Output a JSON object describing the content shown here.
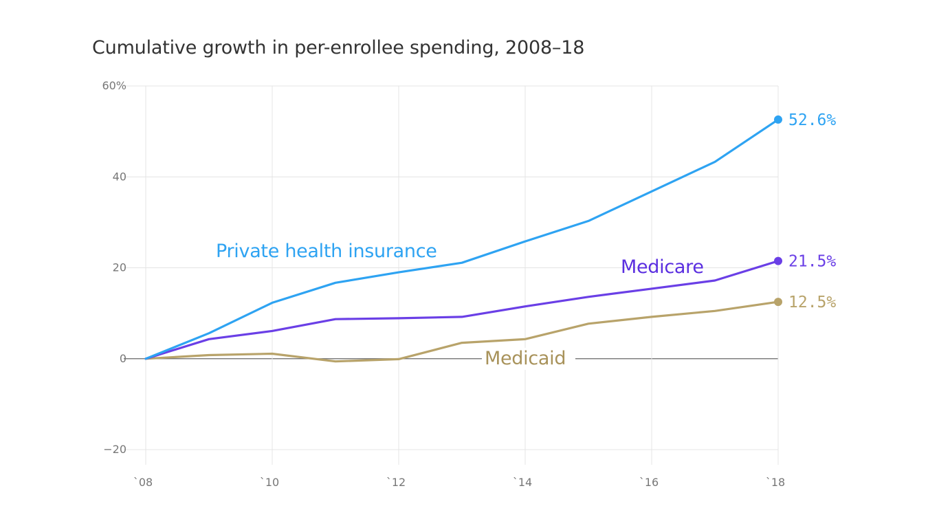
{
  "chart_data": {
    "type": "line",
    "title": "Cumulative growth in per-enrollee spending, 2008–18",
    "xlabel": "",
    "ylabel": "",
    "x": [
      2008,
      2009,
      2010,
      2011,
      2012,
      2013,
      2014,
      2015,
      2016,
      2017,
      2018
    ],
    "xlim": [
      2008,
      2018
    ],
    "ylim": [
      -20,
      60
    ],
    "x_ticks": [
      2008,
      2010,
      2012,
      2014,
      2016,
      2018
    ],
    "x_tick_labels": [
      "`08",
      "`10",
      "`12",
      "`14",
      "`16",
      "`18"
    ],
    "y_ticks": [
      -20,
      0,
      20,
      40,
      60
    ],
    "y_tick_labels": [
      "−20",
      "0",
      "20",
      "40",
      "60%"
    ],
    "grid": true,
    "series": [
      {
        "name": "Private health insurance",
        "color": "#2ea3f2",
        "values": [
          0,
          5.6,
          12.3,
          16.7,
          19.0,
          21.1,
          25.8,
          30.3,
          36.8,
          43.3,
          52.6
        ],
        "end_label": "52.6%"
      },
      {
        "name": "Medicare",
        "color": "#6a3fe6",
        "label_color": "#5a2ee0",
        "values": [
          0,
          4.3,
          6.1,
          8.7,
          8.9,
          9.2,
          11.5,
          13.6,
          15.4,
          17.2,
          21.5
        ],
        "end_label": "21.5%"
      },
      {
        "name": "Medicaid",
        "color": "#b8a36a",
        "label_color": "#a8925a",
        "values": [
          0,
          0.8,
          1.1,
          -0.6,
          -0.1,
          3.5,
          4.3,
          7.7,
          9.2,
          10.5,
          12.5
        ],
        "end_label": "12.5%"
      }
    ]
  }
}
